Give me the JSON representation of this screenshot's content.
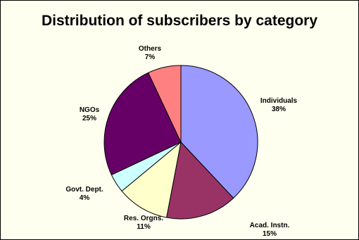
{
  "chart_data": {
    "type": "pie",
    "title": "Distribution of subscribers by category",
    "start_angle_deg": 0,
    "direction": "clockwise",
    "slices": [
      {
        "label": "Individuals",
        "pct_label": "38%",
        "value": 38,
        "color": "#9999ff"
      },
      {
        "label": "Acad. Instn.",
        "pct_label": "15%",
        "value": 15,
        "color": "#993366"
      },
      {
        "label": "Res. Orgns.",
        "pct_label": "11%",
        "value": 11,
        "color": "#ffffcc"
      },
      {
        "label": "Govt. Dept.",
        "pct_label": "4%",
        "value": 4,
        "color": "#ccffff"
      },
      {
        "label": "NGOs",
        "pct_label": "25%",
        "value": 25,
        "color": "#660066"
      },
      {
        "label": "Others",
        "pct_label": "7%",
        "value": 7,
        "color": "#ff8080"
      }
    ]
  }
}
